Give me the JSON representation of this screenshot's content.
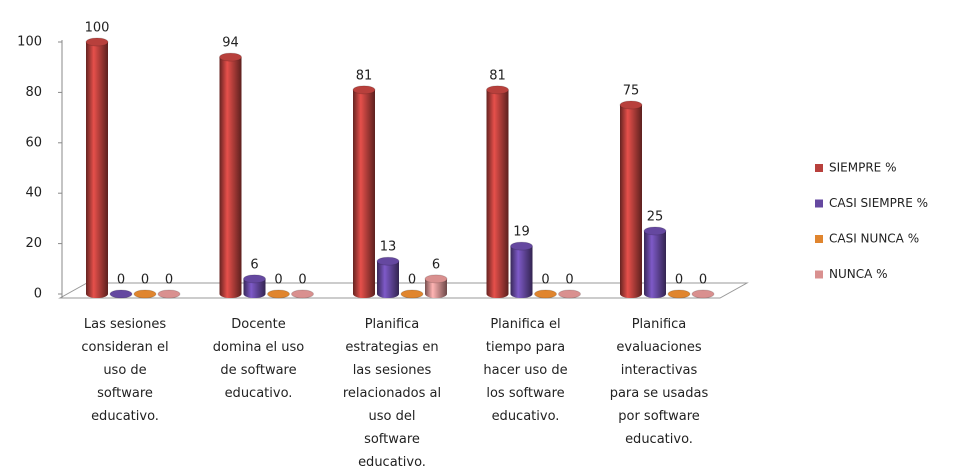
{
  "chart_data": {
    "type": "bar3d",
    "categories": [
      "Las sesiones\nconsideran el\nuso de\nsoftware\neducativo.",
      "Docente\ndomina el uso\nde  software\neducativo.",
      "Planifica\nestrategias en\nlas sesiones\nrelacionados al\nuso del\nsoftware\neducativo.",
      "Planifica el\ntiempo para\nhacer uso  de\nlos software\neducativo.",
      "Planifica\nevaluaciones\ninteractivas\npara se usadas\npor software\neducativo."
    ],
    "series": [
      {
        "name": "SIEMPRE %",
        "color": "#b8403c",
        "values": [
          100,
          94,
          81,
          81,
          75
        ]
      },
      {
        "name": "CASI SIEMPRE %",
        "color": "#6548a0",
        "values": [
          0,
          6,
          13,
          19,
          25
        ]
      },
      {
        "name": "CASI NUNCA %",
        "color": "#e0852e",
        "values": [
          0,
          0,
          0,
          0,
          0
        ]
      },
      {
        "name": "NUNCA %",
        "color": "#d9908f",
        "values": [
          0,
          0,
          6,
          0,
          0
        ]
      }
    ],
    "ylim": [
      0,
      100
    ],
    "yticks": [
      0,
      20,
      40,
      60,
      80,
      100
    ],
    "legend": "right"
  }
}
